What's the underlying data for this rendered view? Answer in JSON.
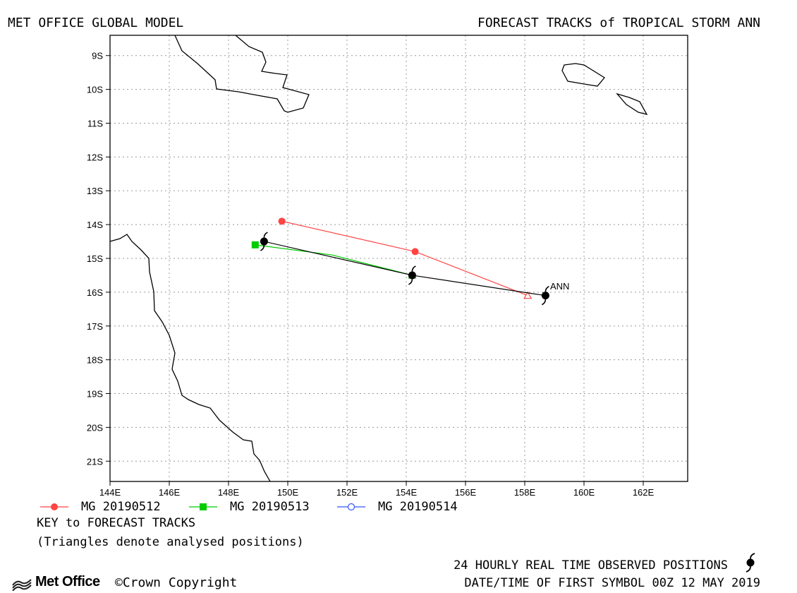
{
  "header": {
    "left_title": "MET OFFICE GLOBAL MODEL",
    "right_title": "FORECAST TRACKS of TROPICAL STORM ANN"
  },
  "map": {
    "lat_labels": [
      "9S",
      "10S",
      "11S",
      "12S",
      "13S",
      "14S",
      "15S",
      "16S",
      "17S",
      "18S",
      "19S",
      "20S",
      "21S"
    ],
    "lat_values": [
      -9,
      -10,
      -11,
      -12,
      -13,
      -14,
      -15,
      -16,
      -17,
      -18,
      -19,
      -20,
      -21
    ],
    "lon_labels": [
      "144E",
      "146E",
      "148E",
      "150E",
      "152E",
      "154E",
      "156E",
      "158E",
      "160E",
      "162E"
    ],
    "lon_values": [
      144,
      146,
      148,
      150,
      152,
      154,
      156,
      158,
      160,
      162
    ],
    "lon_range": [
      144,
      163.5
    ],
    "lat_range": [
      -8.4,
      -21.6
    ],
    "storm_name": "ANN",
    "colors": {
      "frame": "#000000",
      "grid": "#999999",
      "coast": "#000000",
      "observed": "#000000",
      "mg_20190512": "#ff4444",
      "mg_20190513": "#00cc00",
      "mg_20190514": "#3355ff"
    },
    "observed_track": [
      {
        "lon": 158.7,
        "lat": -16.1
      },
      {
        "lon": 154.2,
        "lat": -15.5
      },
      {
        "lon": 149.2,
        "lat": -14.5
      }
    ],
    "forecast_tracks": [
      {
        "name": "MG 20190512",
        "color": "#ff4444",
        "marker": "filled-circle",
        "points": [
          {
            "lon": 158.1,
            "lat": -16.1
          },
          {
            "lon": 154.3,
            "lat": -14.8
          },
          {
            "lon": 149.8,
            "lat": -13.9
          }
        ]
      },
      {
        "name": "MG 20190513",
        "color": "#00cc00",
        "marker": "filled-square",
        "points": [
          {
            "lon": 154.2,
            "lat": -15.5
          },
          {
            "lon": 151.5,
            "lat": -14.9
          },
          {
            "lon": 148.9,
            "lat": -14.6
          }
        ]
      },
      {
        "name": "MG 20190514",
        "color": "#3355ff",
        "marker": "open-circle",
        "points": [
          {
            "lon": 149.2,
            "lat": -14.5
          }
        ]
      }
    ]
  },
  "legend": {
    "items": [
      {
        "label": "MG 20190512",
        "color": "#ff4444",
        "marker": "filled-circle"
      },
      {
        "label": "MG 20190513",
        "color": "#00cc00",
        "marker": "filled-square"
      },
      {
        "label": "MG 20190514",
        "color": "#3355ff",
        "marker": "open-circle"
      }
    ],
    "key_title": "KEY to FORECAST TRACKS",
    "key_note": "(Triangles denote analysed positions)"
  },
  "footer": {
    "observed_note": "24 HOURLY REAL TIME OBSERVED POSITIONS",
    "first_symbol": "DATE/TIME OF FIRST SYMBOL 00Z 12 MAY 2019",
    "logo_text": "Met Office",
    "copyright": "©Crown Copyright",
    "icons": {
      "cyclone": "cyclone-symbol-icon",
      "logo": "met-office-logo-icon"
    }
  }
}
